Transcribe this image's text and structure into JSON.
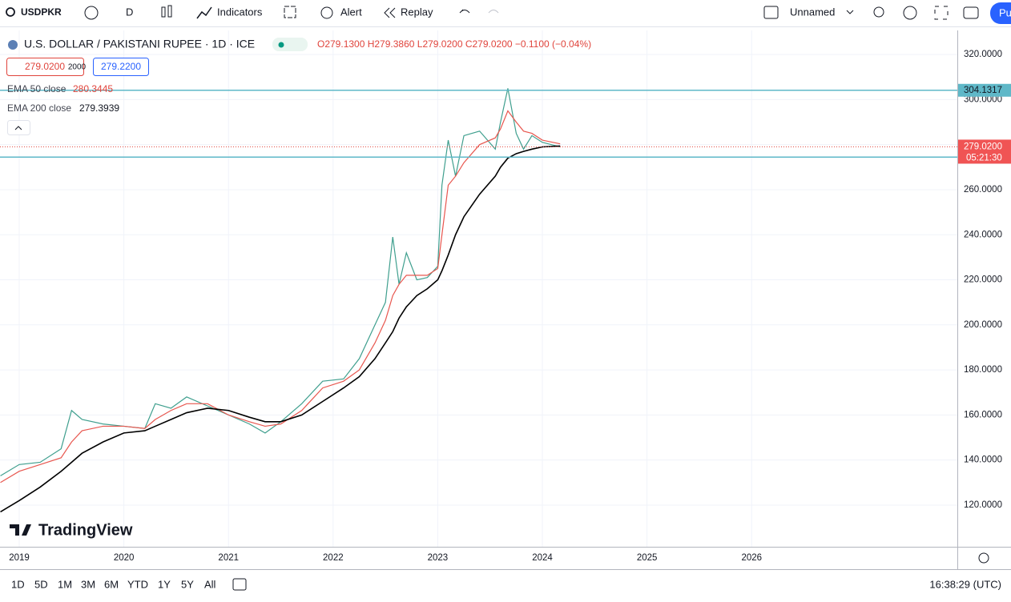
{
  "toolbar": {
    "symbol": "USDPKR",
    "interval": "D",
    "indicators": "Indicators",
    "alert": "Alert",
    "replay": "Replay",
    "layout_name": "Unnamed",
    "publish": "Pu"
  },
  "legend": {
    "title": "U.S. DOLLAR / PAKISTANI RUPEE · 1D · ICE",
    "ohlc": "O279.1300 H279.3860 L279.0200 C279.0200 −0.1100 (−0.04%)",
    "sell": "279.0200",
    "spread": "2000",
    "buy": "279.2200",
    "ema50_name": "EMA 50 close",
    "ema50_value": "280.3445",
    "ema200_name": "EMA 200 close",
    "ema200_value": "279.3939"
  },
  "chart_data": {
    "type": "line",
    "x": [
      2018.82,
      2019.0,
      2019.2,
      2019.4,
      2019.5,
      2019.6,
      2019.8,
      2020.0,
      2020.2,
      2020.3,
      2020.45,
      2020.6,
      2020.8,
      2021.0,
      2021.2,
      2021.35,
      2021.5,
      2021.7,
      2021.9,
      2022.1,
      2022.25,
      2022.4,
      2022.5,
      2022.57,
      2022.63,
      2022.7,
      2022.8,
      2022.9,
      2023.0,
      2023.04,
      2023.1,
      2023.17,
      2023.25,
      2023.4,
      2023.55,
      2023.6,
      2023.67,
      2023.75,
      2023.82,
      2023.9,
      2024.0,
      2024.17
    ],
    "series": [
      {
        "name": "USDPKR",
        "color": "#3f9f8e",
        "values": [
          133,
          138,
          139,
          145,
          162,
          158,
          156,
          155,
          154,
          165,
          163,
          168,
          164,
          160,
          156,
          152,
          157,
          165,
          175,
          176,
          185,
          200,
          210,
          239,
          218,
          232,
          220,
          221,
          226,
          262,
          282,
          266,
          284,
          286,
          278,
          290,
          305,
          285,
          278,
          284,
          281,
          279.02
        ]
      },
      {
        "name": "EMA 50",
        "color": "#e8574f",
        "values": [
          130,
          135,
          138,
          141,
          148,
          153,
          155,
          155,
          154,
          158,
          162,
          165,
          165,
          160,
          157,
          155,
          156,
          162,
          172,
          175,
          180,
          192,
          202,
          213,
          218,
          222,
          222,
          222,
          225,
          240,
          262,
          266,
          272,
          280,
          283,
          287,
          295,
          290,
          286,
          285,
          282,
          280.34
        ]
      },
      {
        "name": "EMA 200",
        "color": "#000000",
        "values": [
          117,
          122,
          128,
          135,
          139,
          143,
          148,
          152,
          153,
          155,
          158,
          161,
          163,
          162,
          159,
          157,
          157,
          160,
          166,
          172,
          177,
          185,
          192,
          197,
          203,
          208,
          213,
          216,
          220,
          224,
          231,
          240,
          248,
          258,
          266,
          270,
          274,
          276,
          277,
          278,
          279,
          279.39
        ]
      }
    ],
    "xlim": [
      2018.816,
      2027.966
    ],
    "xticks": [
      2019,
      2020,
      2021,
      2022,
      2023,
      2024,
      2025,
      2026
    ],
    "ylim": [
      101.5,
      330.7
    ],
    "yticks": [
      {
        "value": 120,
        "label": "120.0000"
      },
      {
        "value": 140,
        "label": "140.0000"
      },
      {
        "value": 160,
        "label": "160.0000"
      },
      {
        "value": 180,
        "label": "180.0000"
      },
      {
        "value": 200,
        "label": "200.0000"
      },
      {
        "value": 220,
        "label": "220.0000"
      },
      {
        "value": 240,
        "label": "240.0000"
      },
      {
        "value": 260,
        "label": "260.0000"
      },
      {
        "value": 280,
        "label": "280.0000"
      },
      {
        "value": 300,
        "label": "300.0000"
      },
      {
        "value": 320,
        "label": "320.0000"
      }
    ],
    "hlines": [
      304.1317,
      274.4647
    ],
    "hline_color": "#5fb8c8",
    "last_price": {
      "value": 279.02,
      "label": "279.0200"
    },
    "countdown": "05:21:30",
    "grid": true
  },
  "logo": "TradingView",
  "bottom_bar": {
    "ranges": [
      "1D",
      "5D",
      "1M",
      "3M",
      "6M",
      "YTD",
      "1Y",
      "5Y",
      "All"
    ],
    "clock": "16:38:29 (UTC)"
  }
}
